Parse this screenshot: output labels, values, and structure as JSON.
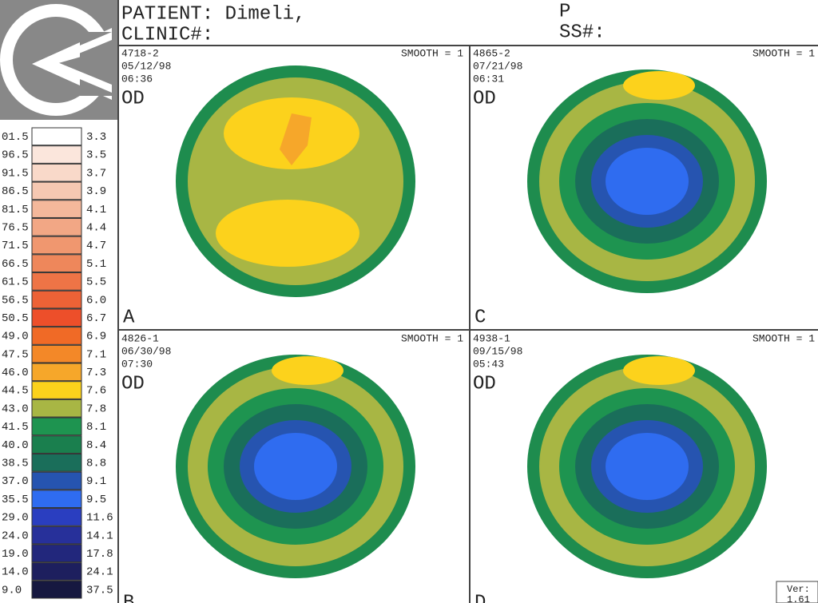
{
  "header": {
    "patient": "PATIENT:  Dimeli,",
    "p": "P",
    "clinic": "CLINIC#:",
    "ss": "SS#:"
  },
  "legend": {
    "rows": [
      {
        "left": "01.5",
        "right": "3.3",
        "color": "#ffffff"
      },
      {
        "left": "96.5",
        "right": "3.5",
        "color": "#fbe6dc"
      },
      {
        "left": "91.5",
        "right": "3.7",
        "color": "#f9d9c9"
      },
      {
        "left": "86.5",
        "right": "3.9",
        "color": "#f6c8b2"
      },
      {
        "left": "81.5",
        "right": "4.1",
        "color": "#f4b89b"
      },
      {
        "left": "76.5",
        "right": "4.4",
        "color": "#f2a785"
      },
      {
        "left": "71.5",
        "right": "4.7",
        "color": "#f0976f"
      },
      {
        "left": "66.5",
        "right": "5.1",
        "color": "#ee875b"
      },
      {
        "left": "61.5",
        "right": "5.5",
        "color": "#ee7446"
      },
      {
        "left": "56.5",
        "right": "6.0",
        "color": "#ed6236"
      },
      {
        "left": "50.5",
        "right": "6.7",
        "color": "#ed4f2a"
      },
      {
        "left": "49.0",
        "right": "6.9",
        "color": "#f06a26"
      },
      {
        "left": "47.5",
        "right": "7.1",
        "color": "#f38828"
      },
      {
        "left": "46.0",
        "right": "7.3",
        "color": "#f6a72a"
      },
      {
        "left": "44.5",
        "right": "7.6",
        "color": "#fcd21c"
      },
      {
        "left": "43.0",
        "right": "7.8",
        "color": "#a8b644"
      },
      {
        "left": "41.5",
        "right": "8.1",
        "color": "#1e9450"
      },
      {
        "left": "40.0",
        "right": "8.4",
        "color": "#1a7f4e"
      },
      {
        "left": "38.5",
        "right": "8.8",
        "color": "#1a6e5a"
      },
      {
        "left": "37.0",
        "right": "9.1",
        "color": "#2654b0"
      },
      {
        "left": "35.5",
        "right": "9.5",
        "color": "#2f6cf0"
      },
      {
        "left": "29.0",
        "right": "11.6",
        "color": "#2a3ec0"
      },
      {
        "left": "24.0",
        "right": "14.1",
        "color": "#27309a"
      },
      {
        "left": "19.0",
        "right": "17.8",
        "color": "#22277c"
      },
      {
        "left": "14.0",
        "right": "24.1",
        "color": "#1d1f5e"
      },
      {
        "left": "9.0",
        "right": "37.5",
        "color": "#161840"
      }
    ]
  },
  "panels": [
    {
      "id": "4718-2",
      "date": "05/12/98",
      "time": "06:36",
      "eye": "OD",
      "smooth": "SMOOTH = 1",
      "letter": "A"
    },
    {
      "id": "4865-2",
      "date": "07/21/98",
      "time": "06:31",
      "eye": "OD",
      "smooth": "SMOOTH = 1",
      "letter": "C"
    },
    {
      "id": "4826-1",
      "date": "06/30/98",
      "time": "07:30",
      "eye": "OD",
      "smooth": "SMOOTH = 1",
      "letter": "B"
    },
    {
      "id": "4938-1",
      "date": "09/15/98",
      "time": "05:43",
      "eye": "OD",
      "smooth": "SMOOTH = 1",
      "letter": "D"
    }
  ],
  "footer": {
    "ver": "Ver:",
    "version": "1.61"
  }
}
